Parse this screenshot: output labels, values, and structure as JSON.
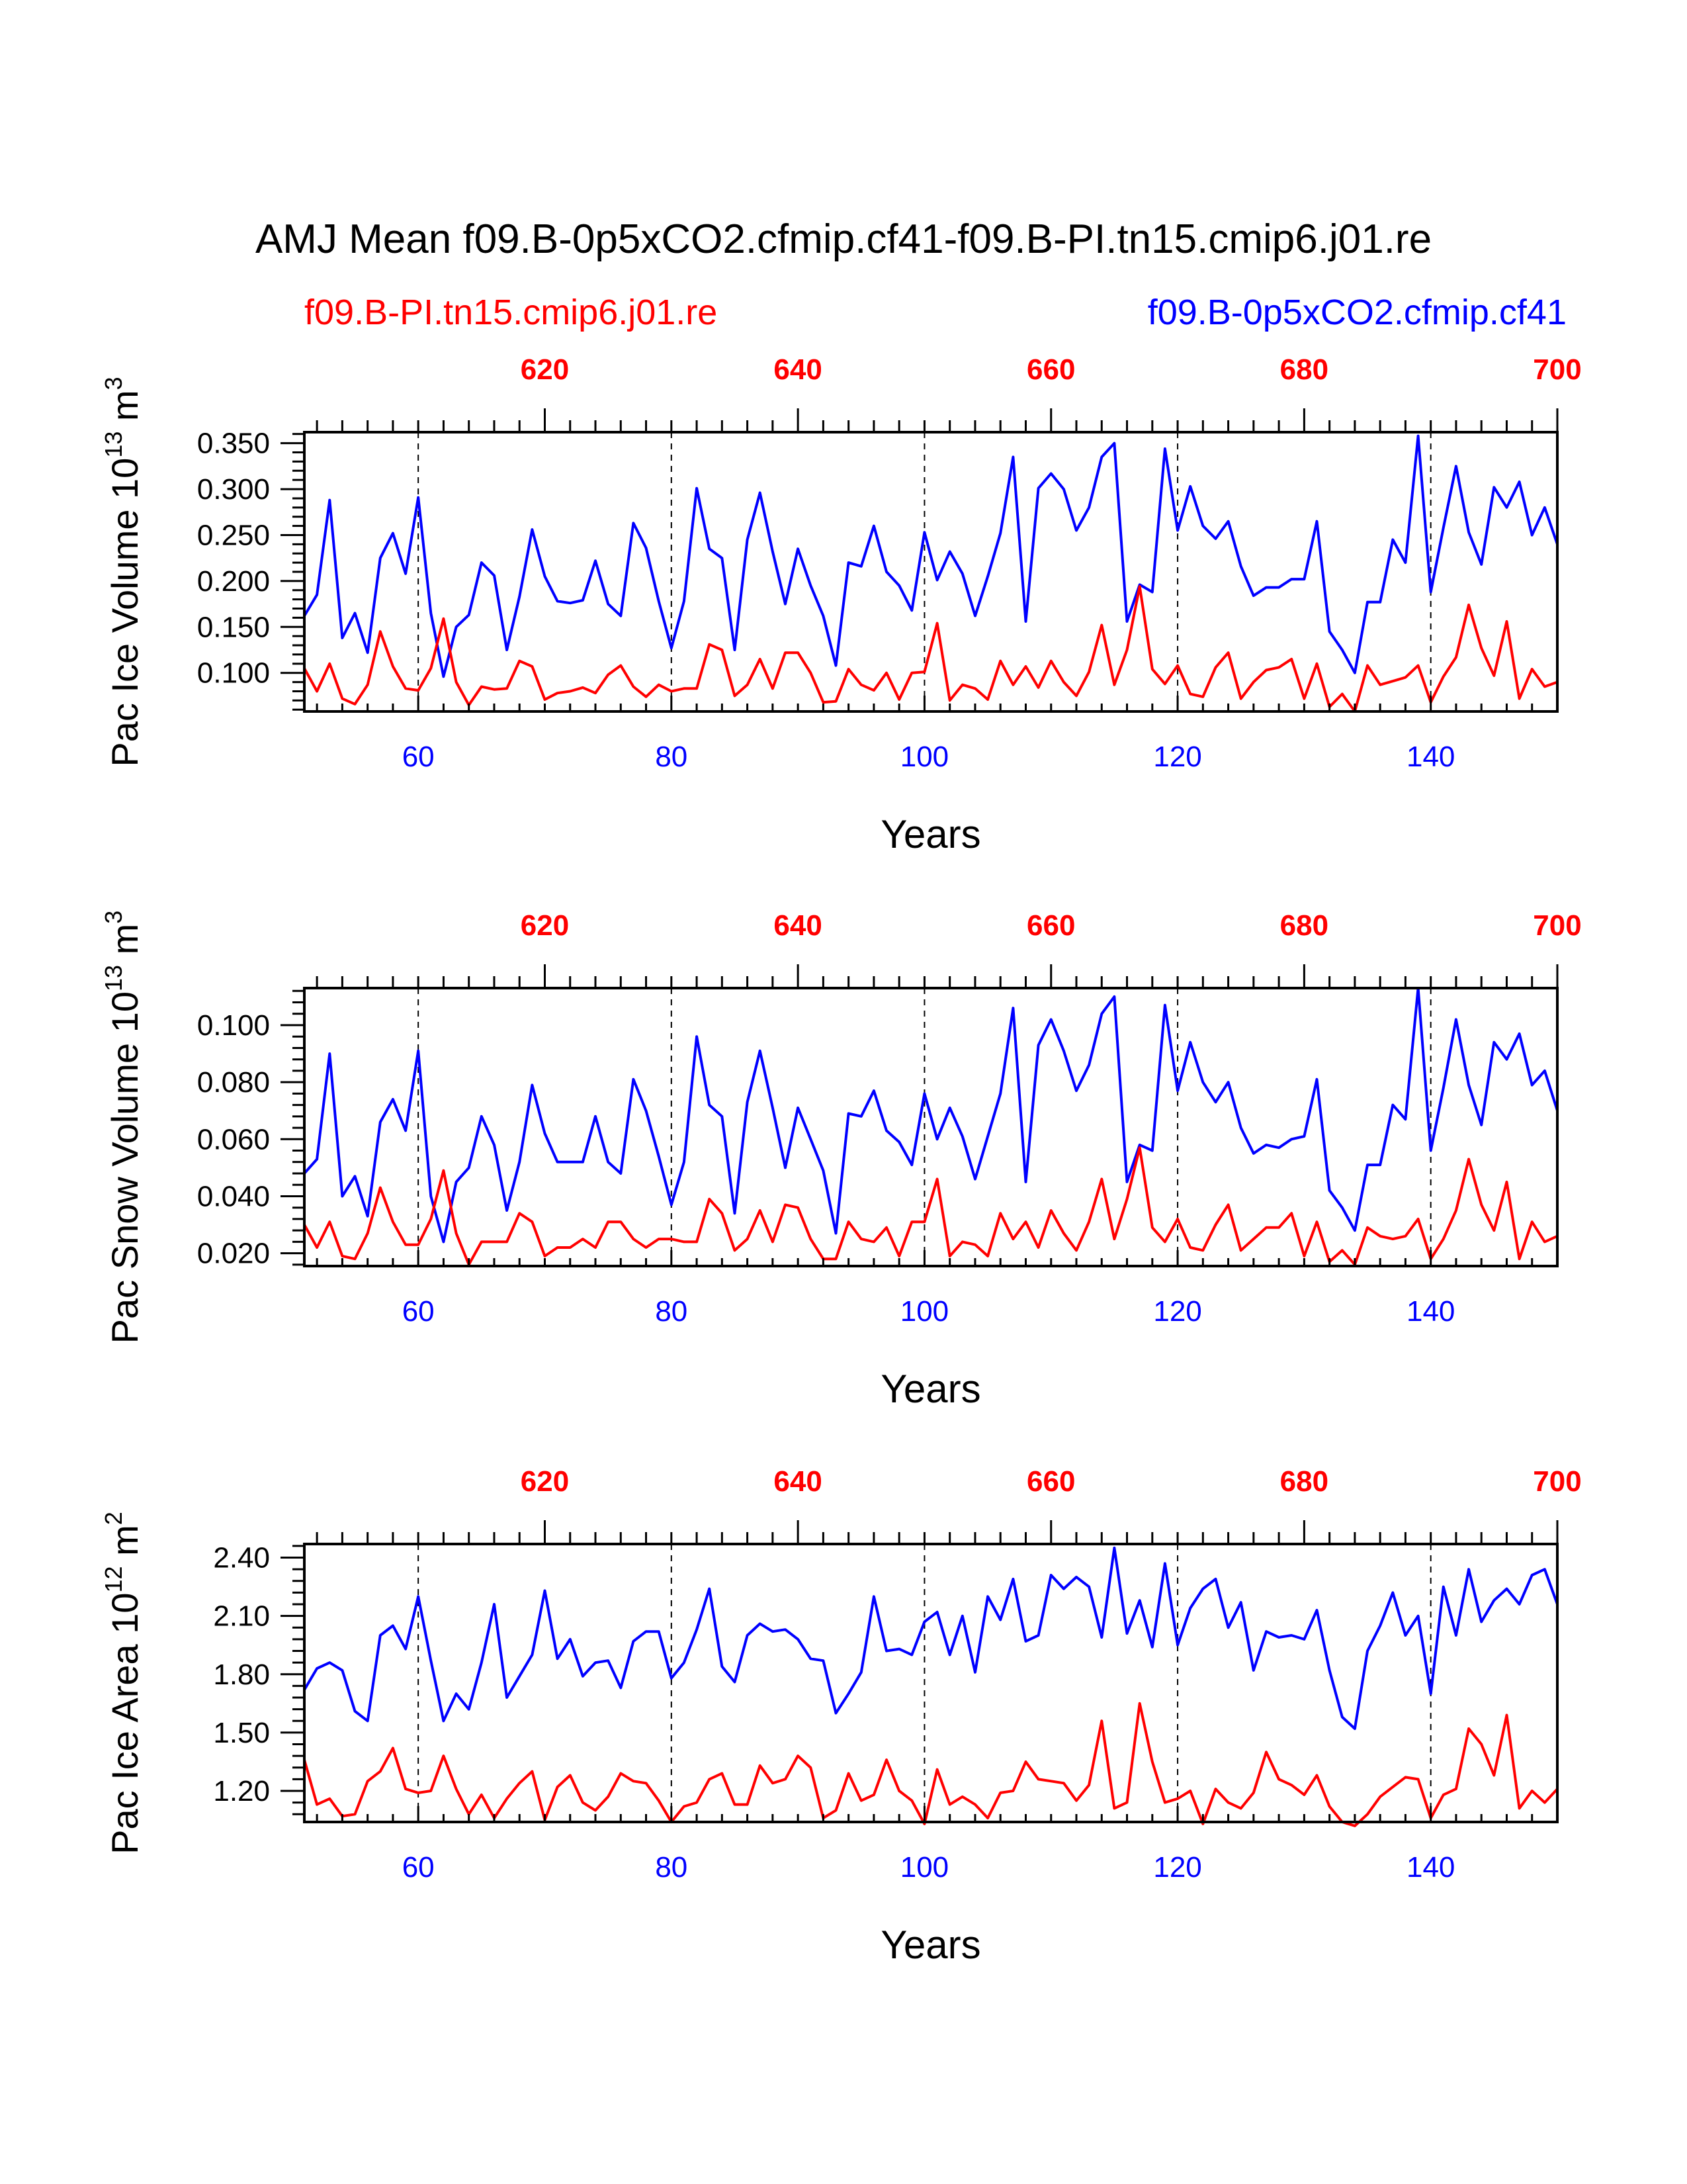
{
  "figure": {
    "title": "AMJ Mean f09.B-0p5xCO2.cfmip.cf41-f09.B-PI.tn15.cmip6.j01.re",
    "legend_left": "f09.B-PI.tn15.cmip6.j01.re",
    "legend_right": "f09.B-0p5xCO2.cfmip.cf41",
    "colors": {
      "red": "#ff0000",
      "blue": "#0000ff",
      "black": "#000000"
    }
  },
  "chart_data": [
    {
      "type": "line",
      "ylabel": "Pac Ice Volume 10",
      "ylabel_exp": "13",
      "ylabel_unit": " m",
      "ylabel_unit_exp": "3",
      "xlabel": "Years",
      "xlim": [
        51,
        150
      ],
      "ylim": [
        0.058,
        0.362
      ],
      "yticks": [
        0.1,
        0.15,
        0.2,
        0.25,
        0.3,
        0.35
      ],
      "ytick_labels": [
        "0.100",
        "0.150",
        "0.200",
        "0.250",
        "0.300",
        "0.350"
      ],
      "xticks_bottom": [
        60,
        80,
        100,
        120,
        140
      ],
      "xticks_top": [
        620,
        640,
        660,
        680,
        700
      ],
      "top_axis_offset": 550,
      "series": [
        {
          "name": "f09.B-0p5xCO2.cfmip.cf41",
          "color": "blue",
          "x_start": 51,
          "values": [
            0.162,
            0.185,
            0.288,
            0.138,
            0.165,
            0.122,
            0.225,
            0.252,
            0.208,
            0.291,
            0.165,
            0.096,
            0.15,
            0.163,
            0.22,
            0.206,
            0.125,
            0.183,
            0.256,
            0.205,
            0.178,
            0.176,
            0.179,
            0.222,
            0.175,
            0.162,
            0.263,
            0.236,
            0.178,
            0.127,
            0.178,
            0.301,
            0.235,
            0.225,
            0.125,
            0.245,
            0.296,
            0.232,
            0.175,
            0.235,
            0.195,
            0.162,
            0.108,
            0.22,
            0.216,
            0.26,
            0.21,
            0.195,
            0.168,
            0.253,
            0.201,
            0.232,
            0.208,
            0.162,
            0.205,
            0.252,
            0.335,
            0.156,
            0.301,
            0.317,
            0.3,
            0.255,
            0.28,
            0.335,
            0.35,
            0.156,
            0.196,
            0.188,
            0.344,
            0.255,
            0.303,
            0.26,
            0.246,
            0.265,
            0.216,
            0.184,
            0.193,
            0.193,
            0.202,
            0.202,
            0.265,
            0.145,
            0.125,
            0.1,
            0.177,
            0.177,
            0.245,
            0.22,
            0.358,
            0.188,
            0.258,
            0.325,
            0.253,
            0.218,
            0.302,
            0.28,
            0.308,
            0.25,
            0.28,
            0.24
          ]
        },
        {
          "name": "f09.B-PI.tn15.cmip6.j01.re",
          "color": "red",
          "x_start": 51,
          "values": [
            0.105,
            0.08,
            0.11,
            0.072,
            0.066,
            0.087,
            0.145,
            0.107,
            0.083,
            0.081,
            0.105,
            0.159,
            0.09,
            0.065,
            0.085,
            0.082,
            0.083,
            0.113,
            0.107,
            0.071,
            0.078,
            0.08,
            0.084,
            0.078,
            0.098,
            0.108,
            0.085,
            0.074,
            0.087,
            0.08,
            0.083,
            0.083,
            0.131,
            0.125,
            0.075,
            0.087,
            0.115,
            0.083,
            0.122,
            0.122,
            0.1,
            0.068,
            0.069,
            0.104,
            0.087,
            0.081,
            0.1,
            0.071,
            0.1,
            0.101,
            0.154,
            0.07,
            0.087,
            0.083,
            0.071,
            0.113,
            0.087,
            0.107,
            0.084,
            0.113,
            0.09,
            0.075,
            0.101,
            0.152,
            0.087,
            0.125,
            0.194,
            0.104,
            0.088,
            0.108,
            0.077,
            0.074,
            0.106,
            0.122,
            0.072,
            0.09,
            0.103,
            0.106,
            0.115,
            0.072,
            0.11,
            0.063,
            0.077,
            0.058,
            0.108,
            0.087,
            0.091,
            0.095,
            0.108,
            0.068,
            0.096,
            0.117,
            0.174,
            0.127,
            0.097,
            0.156,
            0.072,
            0.104,
            0.085,
            0.09
          ]
        }
      ]
    },
    {
      "type": "line",
      "ylabel": "Pac Snow Volume 10",
      "ylabel_exp": "13",
      "ylabel_unit": " m",
      "ylabel_unit_exp": "3",
      "xlabel": "Years",
      "xlim": [
        51,
        150
      ],
      "ylim": [
        0.0155,
        0.113
      ],
      "yticks": [
        0.02,
        0.04,
        0.06,
        0.08,
        0.1
      ],
      "ytick_labels": [
        "0.020",
        "0.040",
        "0.060",
        "0.080",
        "0.100"
      ],
      "xticks_bottom": [
        60,
        80,
        100,
        120,
        140
      ],
      "xticks_top": [
        620,
        640,
        660,
        680,
        700
      ],
      "top_axis_offset": 550,
      "series": [
        {
          "name": "f09.B-0p5xCO2.cfmip.cf41",
          "color": "blue",
          "x_start": 51,
          "values": [
            0.048,
            0.053,
            0.09,
            0.04,
            0.047,
            0.033,
            0.066,
            0.074,
            0.063,
            0.091,
            0.04,
            0.024,
            0.045,
            0.05,
            0.068,
            0.058,
            0.035,
            0.052,
            0.079,
            0.062,
            0.052,
            0.052,
            0.052,
            0.068,
            0.052,
            0.048,
            0.081,
            0.07,
            0.054,
            0.037,
            0.052,
            0.096,
            0.072,
            0.068,
            0.034,
            0.073,
            0.091,
            0.071,
            0.05,
            0.071,
            0.06,
            0.049,
            0.027,
            0.069,
            0.068,
            0.077,
            0.063,
            0.059,
            0.051,
            0.076,
            0.06,
            0.071,
            0.061,
            0.046,
            0.061,
            0.076,
            0.106,
            0.045,
            0.093,
            0.102,
            0.091,
            0.077,
            0.086,
            0.104,
            0.11,
            0.045,
            0.058,
            0.056,
            0.107,
            0.077,
            0.094,
            0.08,
            0.073,
            0.08,
            0.064,
            0.055,
            0.058,
            0.057,
            0.06,
            0.061,
            0.081,
            0.042,
            0.036,
            0.028,
            0.051,
            0.051,
            0.072,
            0.067,
            0.113,
            0.056,
            0.078,
            0.102,
            0.079,
            0.065,
            0.094,
            0.088,
            0.097,
            0.079,
            0.084,
            0.07
          ]
        },
        {
          "name": "f09.B-PI.tn15.cmip6.j01.re",
          "color": "red",
          "x_start": 51,
          "values": [
            0.03,
            0.022,
            0.031,
            0.019,
            0.018,
            0.027,
            0.043,
            0.031,
            0.023,
            0.023,
            0.032,
            0.049,
            0.027,
            0.016,
            0.024,
            0.024,
            0.024,
            0.034,
            0.031,
            0.019,
            0.022,
            0.022,
            0.025,
            0.022,
            0.031,
            0.031,
            0.025,
            0.022,
            0.025,
            0.025,
            0.024,
            0.024,
            0.039,
            0.034,
            0.021,
            0.025,
            0.035,
            0.024,
            0.037,
            0.036,
            0.025,
            0.018,
            0.018,
            0.031,
            0.025,
            0.024,
            0.029,
            0.019,
            0.031,
            0.031,
            0.046,
            0.019,
            0.024,
            0.023,
            0.019,
            0.034,
            0.025,
            0.031,
            0.022,
            0.035,
            0.027,
            0.021,
            0.031,
            0.046,
            0.025,
            0.039,
            0.057,
            0.029,
            0.024,
            0.032,
            0.022,
            0.021,
            0.03,
            0.037,
            0.021,
            0.025,
            0.029,
            0.029,
            0.034,
            0.019,
            0.031,
            0.017,
            0.021,
            0.016,
            0.029,
            0.026,
            0.025,
            0.026,
            0.032,
            0.018,
            0.025,
            0.035,
            0.053,
            0.037,
            0.028,
            0.045,
            0.018,
            0.031,
            0.024,
            0.026
          ]
        }
      ]
    },
    {
      "type": "line",
      "ylabel": "Pac Ice Area 10",
      "ylabel_exp": "12",
      "ylabel_unit": " m",
      "ylabel_unit_exp": "2",
      "xlabel": "Years",
      "xlim": [
        51,
        150
      ],
      "ylim": [
        1.04,
        2.47
      ],
      "yticks": [
        1.2,
        1.5,
        1.8,
        2.1,
        2.4
      ],
      "ytick_labels": [
        "1.20",
        "1.50",
        "1.80",
        "2.10",
        "2.40"
      ],
      "xticks_bottom": [
        60,
        80,
        100,
        120,
        140
      ],
      "xticks_top": [
        620,
        640,
        660,
        680,
        700
      ],
      "top_axis_offset": 550,
      "series": [
        {
          "name": "f09.B-0p5xCO2.cfmip.cf41",
          "color": "blue",
          "x_start": 51,
          "values": [
            1.72,
            1.83,
            1.86,
            1.82,
            1.61,
            1.56,
            2.0,
            2.05,
            1.93,
            2.2,
            1.87,
            1.56,
            1.7,
            1.62,
            1.86,
            2.16,
            1.68,
            1.79,
            1.9,
            2.23,
            1.88,
            1.98,
            1.79,
            1.86,
            1.87,
            1.73,
            1.97,
            2.02,
            2.02,
            1.78,
            1.86,
            2.03,
            2.24,
            1.84,
            1.76,
            2.0,
            2.06,
            2.02,
            2.03,
            1.98,
            1.88,
            1.87,
            1.6,
            1.7,
            1.81,
            2.2,
            1.92,
            1.93,
            1.9,
            2.07,
            2.12,
            1.9,
            2.1,
            1.81,
            2.2,
            2.08,
            2.29,
            1.97,
            2.0,
            2.31,
            2.24,
            2.3,
            2.25,
            1.99,
            2.45,
            2.01,
            2.18,
            1.94,
            2.37,
            1.95,
            2.14,
            2.24,
            2.29,
            2.04,
            2.17,
            1.82,
            2.02,
            1.99,
            2.0,
            1.98,
            2.13,
            1.82,
            1.58,
            1.52,
            1.92,
            2.05,
            2.22,
            2.0,
            2.1,
            1.7,
            2.25,
            2.0,
            2.34,
            2.07,
            2.18,
            2.24,
            2.16,
            2.31,
            2.34,
            2.16
          ]
        },
        {
          "name": "f09.B-PI.tn15.cmip6.j01.re",
          "color": "red",
          "x_start": 51,
          "values": [
            1.36,
            1.13,
            1.16,
            1.07,
            1.08,
            1.25,
            1.3,
            1.42,
            1.21,
            1.19,
            1.2,
            1.38,
            1.21,
            1.08,
            1.18,
            1.06,
            1.16,
            1.24,
            1.3,
            1.05,
            1.22,
            1.28,
            1.14,
            1.1,
            1.17,
            1.29,
            1.25,
            1.24,
            1.15,
            1.04,
            1.12,
            1.14,
            1.26,
            1.29,
            1.13,
            1.13,
            1.33,
            1.24,
            1.26,
            1.38,
            1.32,
            1.06,
            1.1,
            1.29,
            1.15,
            1.18,
            1.36,
            1.2,
            1.15,
            1.03,
            1.31,
            1.13,
            1.17,
            1.13,
            1.06,
            1.19,
            1.2,
            1.35,
            1.26,
            1.25,
            1.24,
            1.15,
            1.23,
            1.56,
            1.11,
            1.14,
            1.65,
            1.35,
            1.14,
            1.16,
            1.2,
            1.03,
            1.21,
            1.14,
            1.11,
            1.19,
            1.4,
            1.26,
            1.23,
            1.18,
            1.28,
            1.12,
            1.04,
            1.02,
            1.08,
            1.17,
            1.22,
            1.27,
            1.26,
            1.06,
            1.18,
            1.21,
            1.52,
            1.44,
            1.28,
            1.59,
            1.11,
            1.2,
            1.14,
            1.21
          ]
        }
      ]
    }
  ]
}
